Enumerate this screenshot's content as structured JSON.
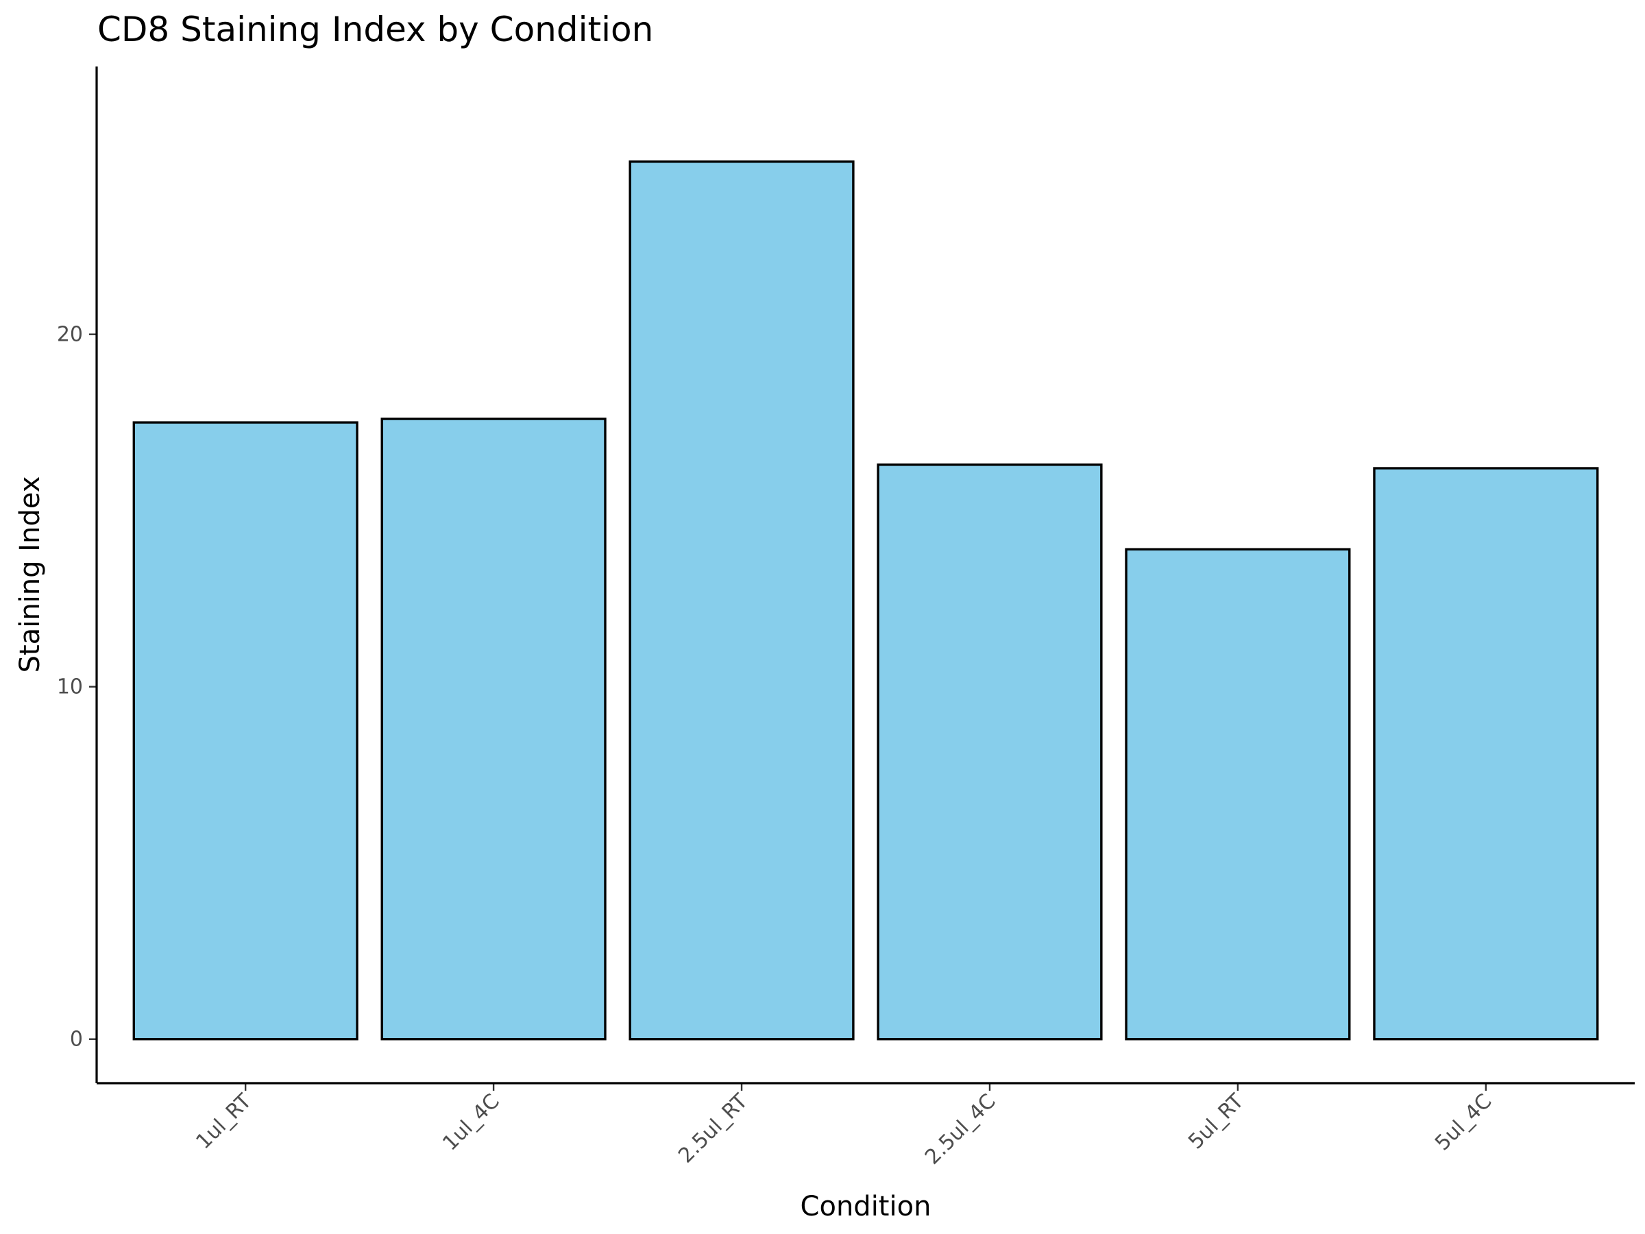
{
  "chart_data": {
    "type": "bar",
    "title": "CD8 Staining Index by Condition",
    "xlabel": "Condition",
    "ylabel": "Staining Index",
    "categories": [
      "1ul_RT",
      "1ul_4C",
      "2.5ul_RT",
      "2.5ul_4C",
      "5ul_RT",
      "5ul_4C"
    ],
    "values": [
      17.5,
      17.6,
      24.9,
      16.3,
      13.9,
      16.2
    ],
    "ylim": [
      -1.25,
      27.6
    ],
    "yticks": [
      0,
      10,
      20
    ],
    "ytick_labels": [
      "0",
      "10",
      "20"
    ],
    "grid": false,
    "legend": "none",
    "bar_color": "#87CEEB",
    "bar_edge_color": "#000000"
  }
}
